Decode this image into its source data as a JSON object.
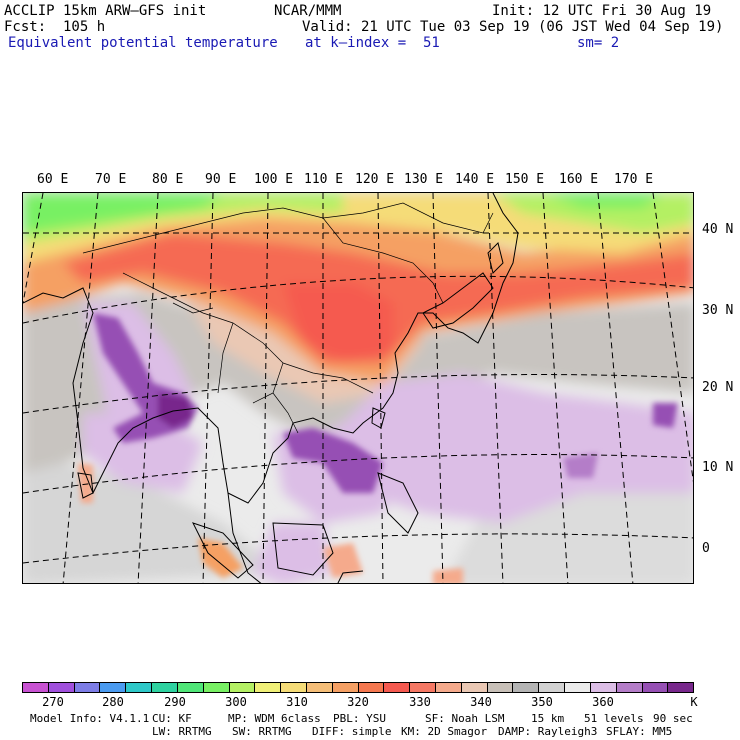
{
  "header": {
    "model": "ACCLIP 15km ARW–GFS init",
    "org": "NCAR/MMM",
    "init": "Init: 12 UTC Fri 30 Aug 19",
    "fcst": "Fcst:  105 h",
    "valid": "Valid: 21 UTC Tue 03 Sep 19 (06 JST Wed 04 Sep 19)",
    "field": "Equivalent potential temperature",
    "level": "at k–index =  51",
    "smooth": "sm= 2"
  },
  "map": {
    "lon_labels": [
      "60 E",
      "70 E",
      "80 E",
      "90 E",
      "100 E",
      "110 E",
      "120 E",
      "130 E",
      "140 E",
      "150 E",
      "160 E",
      "170 E"
    ],
    "lat_labels": [
      "40 N",
      "30 N",
      "20 N",
      "10 N",
      "0"
    ]
  },
  "colorbar": {
    "colors": [
      "#c852d2",
      "#a050dc",
      "#7d7de6",
      "#4b9bf0",
      "#2ec8c8",
      "#2ed2a0",
      "#50e678",
      "#78f064",
      "#b4f064",
      "#f0f078",
      "#f5dc78",
      "#f5be78",
      "#f5a064",
      "#f57850",
      "#f55a50",
      "#f57864",
      "#f5aa8c",
      "#eac8b4",
      "#c8c0b8",
      "#b4b4b4",
      "#d2d2d2",
      "#ebebeb",
      "#dcbee6",
      "#b47dc8",
      "#9650b4",
      "#78288c"
    ],
    "ticks": [
      "270",
      "280",
      "290",
      "300",
      "310",
      "320",
      "330",
      "340",
      "350",
      "360"
    ],
    "unit": "K"
  },
  "footer": {
    "line1": [
      "Model Info: V4.1.1",
      "CU: KF",
      "MP: WDM 6class",
      "PBL: YSU",
      "SF: Noah LSM",
      "15 km",
      "51 levels",
      "90 sec"
    ],
    "line2": [
      "LW: RRTMG",
      "SW: RRTMG",
      "DIFF: simple",
      "KM: 2D Smagor",
      "DAMP: Rayleigh3",
      "SFLAY: MM5"
    ]
  }
}
